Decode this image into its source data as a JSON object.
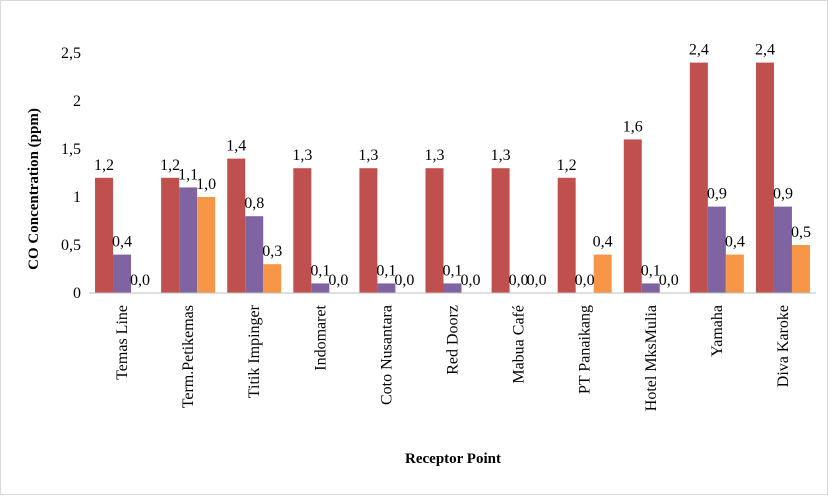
{
  "chart_data": {
    "type": "bar",
    "title": "",
    "xlabel": "Receptor Point",
    "ylabel": "CO Concentration (ppm)",
    "ylim": [
      0,
      2.5
    ],
    "yticks": [
      "0",
      "0,5",
      "1",
      "1,5",
      "2",
      "2,5"
    ],
    "ytick_values": [
      0,
      0.5,
      1,
      1.5,
      2,
      2.5
    ],
    "grid": false,
    "legend": "none",
    "categories": [
      "Temas Line",
      "Term.Petikemas",
      "Titik Impinger",
      "Indomaret",
      "Coto Nusantara",
      "Red Doorz",
      "Mabua Café",
      "PT Panaikang",
      "Hotel MksMulia",
      "Yamaha",
      "Diva Karoke"
    ],
    "series": [
      {
        "color": "#c0504d",
        "values": [
          1.2,
          1.2,
          1.4,
          1.3,
          1.3,
          1.3,
          1.3,
          1.2,
          1.6,
          2.4,
          2.4
        ],
        "labels": [
          "1,2",
          "1,2",
          "1,4",
          "1,3",
          "1,3",
          "1,3",
          "1,3",
          "1,2",
          "1,6",
          "2,4",
          "2,4"
        ]
      },
      {
        "color": "#8064a2",
        "values": [
          0.4,
          1.1,
          0.8,
          0.1,
          0.1,
          0.1,
          0.0,
          null,
          0.1,
          0.9,
          0.9
        ],
        "labels": [
          "0,4",
          "1,1",
          "0,8",
          "0,1",
          "0,1",
          "0,1",
          "0,0",
          null,
          "0,1",
          "0,9",
          "0,9"
        ]
      },
      {
        "color": "#f79646",
        "values": [
          0.0,
          1.0,
          0.3,
          0.0,
          0.0,
          0.0,
          0.0,
          0.4,
          0.0,
          0.4,
          0.5
        ],
        "labels": [
          "0,0",
          "1,0",
          "0,3",
          "0,0",
          "0,0",
          "0,0",
          "0,0",
          "0,4",
          "0,0",
          "0,4",
          "0,5"
        ]
      }
    ],
    "extra_labels": [
      {
        "category_index": 7,
        "text": "0,0"
      }
    ]
  }
}
